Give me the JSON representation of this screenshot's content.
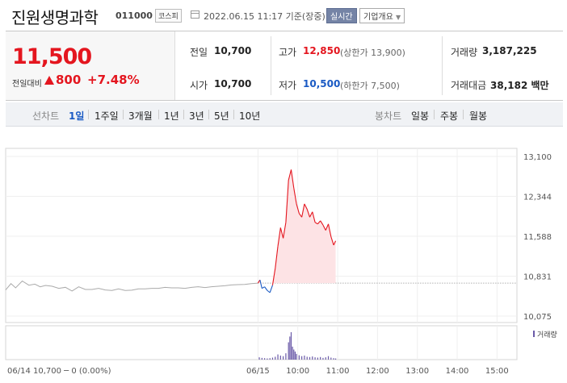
{
  "header": {
    "title": "진원생명과학",
    "code": "011000",
    "market": "코스피",
    "datetime": "2022.06.15 11:17 기준(장중)",
    "realtime_label": "실시간",
    "company_label": "기업개요",
    "company_arrow": "▼"
  },
  "summary": {
    "price": "11,500",
    "change_label": "전일대비",
    "change_value": "800",
    "change_percent": "+7.48%",
    "prev_label": "전일",
    "prev_value": "10,700",
    "open_label": "시가",
    "open_value": "10,700",
    "high_label": "고가",
    "high_value": "12,850",
    "upper_limit": "(상한가 13,900)",
    "low_label": "저가",
    "low_value": "10,500",
    "lower_limit": "(하한가 7,500)",
    "volume_label": "거래량",
    "volume_value": "3,187,225",
    "amount_label": "거래대금",
    "amount_value": "38,182 백만"
  },
  "tabs": {
    "line_label": "선차트",
    "line_items": [
      "1일",
      "1주일",
      "3개월",
      "1년",
      "3년",
      "5년",
      "10년"
    ],
    "line_selected": 0,
    "candle_label": "봉차트",
    "candle_items": [
      "일봉",
      "주봉",
      "월봉"
    ]
  },
  "colors": {
    "up": "#e4161f",
    "down": "#1a5ac4",
    "prev": "#aaaaaa"
  },
  "chart_data": {
    "type": "line",
    "title": "",
    "y_ticks": [
      "13,100",
      "12,344",
      "11,588",
      "10,831",
      "10,075"
    ],
    "ylim": [
      10075,
      13100
    ],
    "baseline": 10700,
    "x_ticks": [
      "06/15",
      "10:00",
      "11:00",
      "12:00",
      "13:00",
      "14:00",
      "15:00"
    ],
    "x_tick_minutes": [
      0,
      60,
      120,
      180,
      240,
      300,
      360
    ],
    "x_range_minutes": [
      -380,
      390
    ],
    "prev_day_label": "06/14 10,700 ─ 0 (0.00%)",
    "volume_legend": "거래량",
    "prev_day_series": {
      "name": "06/14",
      "minutes": [
        -380,
        -372,
        -365,
        -355,
        -345,
        -336,
        -328,
        -320,
        -310,
        -300,
        -290,
        -280,
        -270,
        -260,
        -250,
        -240,
        -230,
        -220,
        -210,
        -200,
        -190,
        -180,
        -170,
        -160,
        -150,
        -140,
        -130,
        -120,
        -110,
        -100,
        -90,
        -80,
        -70,
        -60,
        -50,
        -40,
        -30,
        -20,
        -10,
        0
      ],
      "values": [
        10570,
        10690,
        10610,
        10740,
        10660,
        10680,
        10630,
        10655,
        10640,
        10600,
        10620,
        10550,
        10630,
        10580,
        10580,
        10600,
        10570,
        10560,
        10590,
        10560,
        10565,
        10590,
        10590,
        10600,
        10600,
        10620,
        10610,
        10610,
        10600,
        10620,
        10630,
        10615,
        10630,
        10640,
        10650,
        10665,
        10670,
        10675,
        10690,
        10700
      ]
    },
    "today_series": {
      "name": "06/15",
      "minutes": [
        0,
        3,
        6,
        10,
        14,
        18,
        22,
        26,
        30,
        34,
        38,
        42,
        46,
        50,
        54,
        58,
        62,
        66,
        70,
        74,
        78,
        82,
        86,
        90,
        94,
        98,
        102,
        106,
        110,
        114,
        117
      ],
      "values": [
        10700,
        10760,
        10600,
        10630,
        10560,
        10520,
        10660,
        10980,
        11400,
        11750,
        11550,
        11850,
        12650,
        12850,
        12500,
        12200,
        12020,
        11950,
        12200,
        12100,
        11950,
        12050,
        11850,
        11820,
        11880,
        11800,
        11700,
        11820,
        11580,
        11420,
        11500
      ]
    },
    "volume_series": {
      "name": "거래량",
      "minutes": [
        2,
        6,
        10,
        14,
        18,
        22,
        26,
        30,
        34,
        38,
        42,
        46,
        48,
        50,
        52,
        54,
        56,
        58,
        62,
        66,
        70,
        74,
        78,
        82,
        86,
        90,
        94,
        98,
        102,
        106,
        110,
        114,
        117
      ],
      "values": [
        8,
        6,
        5,
        4,
        5,
        7,
        10,
        18,
        14,
        12,
        22,
        60,
        80,
        95,
        45,
        35,
        28,
        20,
        15,
        12,
        14,
        10,
        9,
        11,
        8,
        7,
        9,
        6,
        8,
        12,
        7,
        5,
        4
      ]
    }
  }
}
